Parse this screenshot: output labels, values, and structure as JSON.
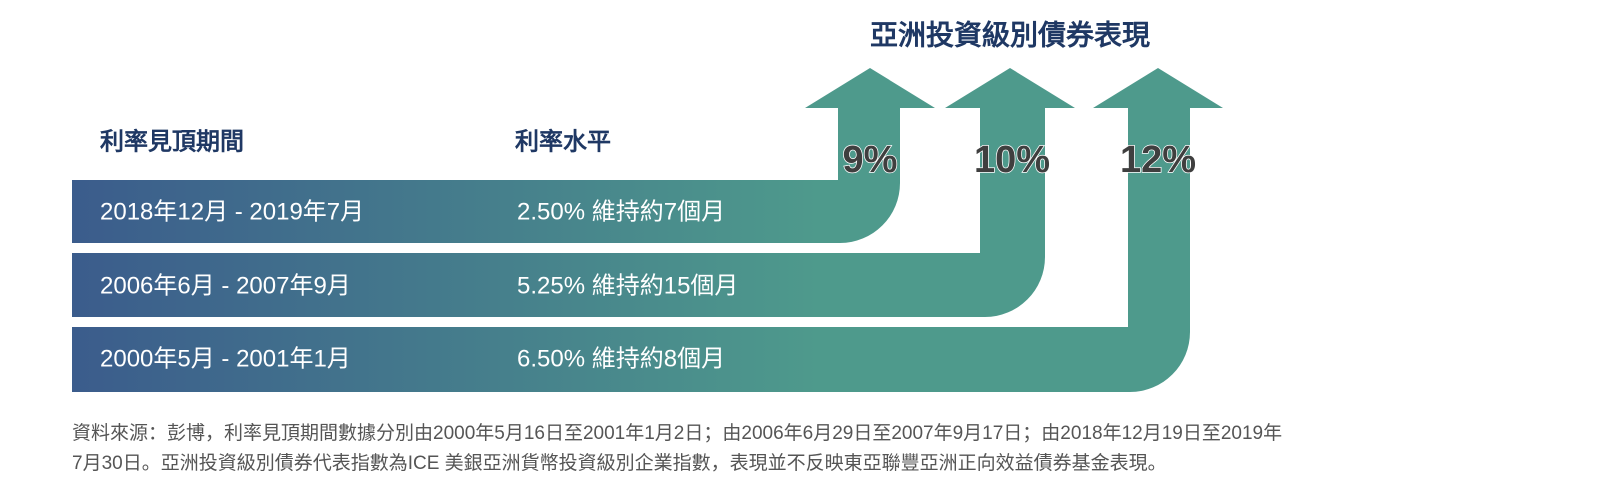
{
  "title": "亞洲投資級別債券表現",
  "headers": {
    "period": "利率見頂期間",
    "level": "利率水平"
  },
  "rows": [
    {
      "period": "2018年12月 - 2019年7月",
      "level": "2.50% 維持約7個月",
      "return": "9%"
    },
    {
      "period": "2006年6月 - 2007年9月",
      "level": "5.25% 維持約15個月",
      "return": "10%"
    },
    {
      "period": "2000年5月 - 2001年1月",
      "level": "6.50% 維持約8個月",
      "return": "12%"
    }
  ],
  "source": [
    "資料來源：彭博，利率見頂期間數據分別由2000年5月16日至2001年1月2日；由2006年6月29日至2007年9月17日；由2018年12月19日至2019年",
    "7月30日。亞洲投資級別債券代表指數為ICE 美銀亞洲貨幣投資級別企業指數，表現並不反映東亞聯豐亞洲正向效益債券基金表現。"
  ]
}
